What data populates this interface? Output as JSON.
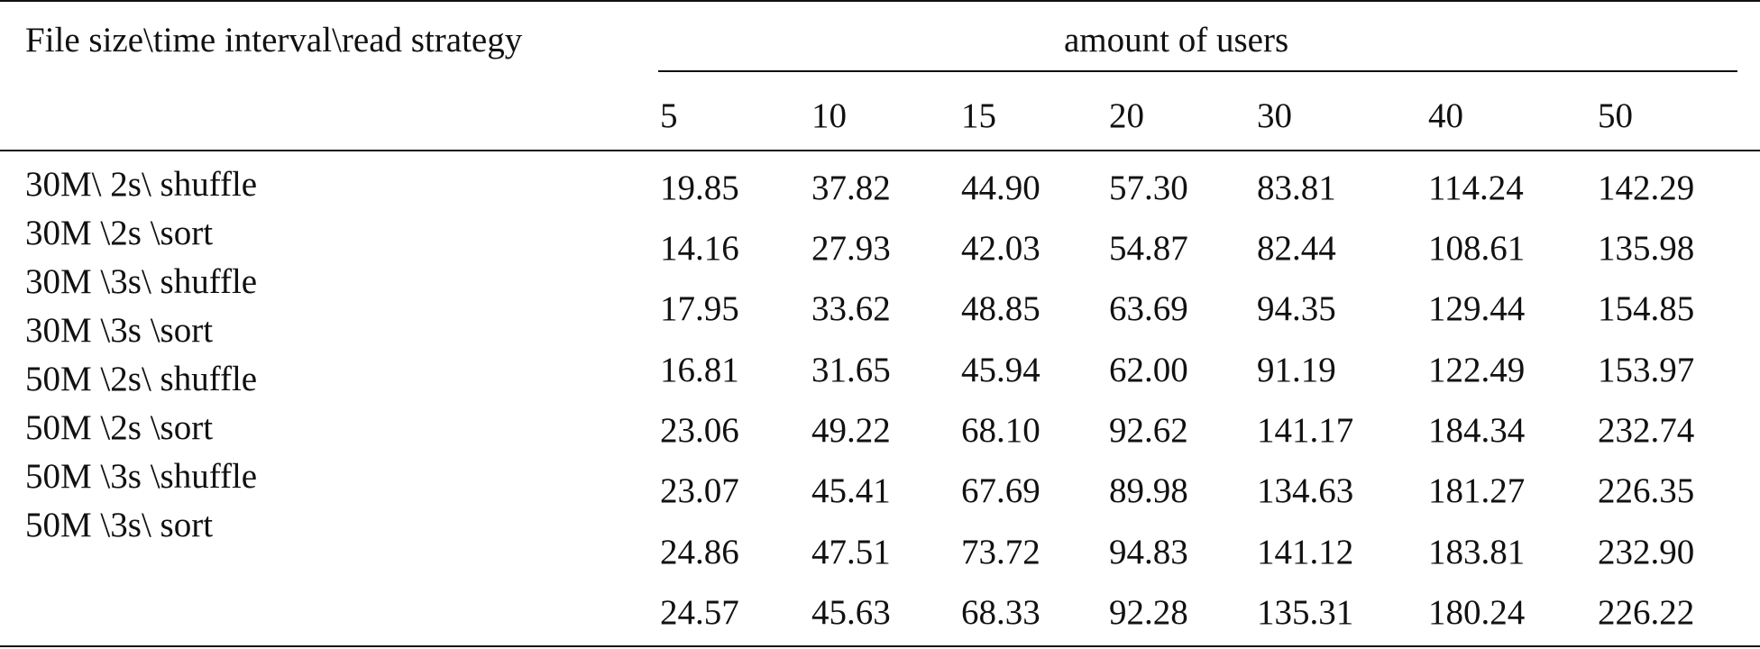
{
  "table": {
    "stub_header": "File size\\time interval\\read strategy",
    "span_header": "amount of users",
    "columns": [
      "5",
      "10",
      "15",
      "20",
      "30",
      "40",
      "50"
    ],
    "row_labels": [
      "30M\\ 2s\\ shuffle",
      "30M \\2s \\sort",
      "30M \\3s\\ shuffle",
      "30M \\3s \\sort",
      "50M \\2s\\ shuffle",
      "50M \\2s \\sort",
      "50M \\3s \\shuffle",
      "50M \\3s\\ sort"
    ],
    "rows": [
      [
        "19.85",
        "37.82",
        "44.90",
        "57.30",
        "83.81",
        "114.24",
        "142.29"
      ],
      [
        "14.16",
        "27.93",
        "42.03",
        "54.87",
        "82.44",
        "108.61",
        "135.98"
      ],
      [
        "17.95",
        "33.62",
        "48.85",
        "63.69",
        "94.35",
        "129.44",
        "154.85"
      ],
      [
        "16.81",
        "31.65",
        "45.94",
        "62.00",
        "91.19",
        "122.49",
        "153.97"
      ],
      [
        "23.06",
        "49.22",
        "68.10",
        "92.62",
        "141.17",
        "184.34",
        "232.74"
      ],
      [
        "23.07",
        "45.41",
        "67.69",
        "89.98",
        "134.63",
        "181.27",
        "226.35"
      ],
      [
        "24.86",
        "47.51",
        "73.72",
        "94.83",
        "141.12",
        "183.81",
        "232.90"
      ],
      [
        "24.57",
        "45.63",
        "68.33",
        "92.28",
        "135.31",
        "180.24",
        "226.22"
      ]
    ]
  }
}
